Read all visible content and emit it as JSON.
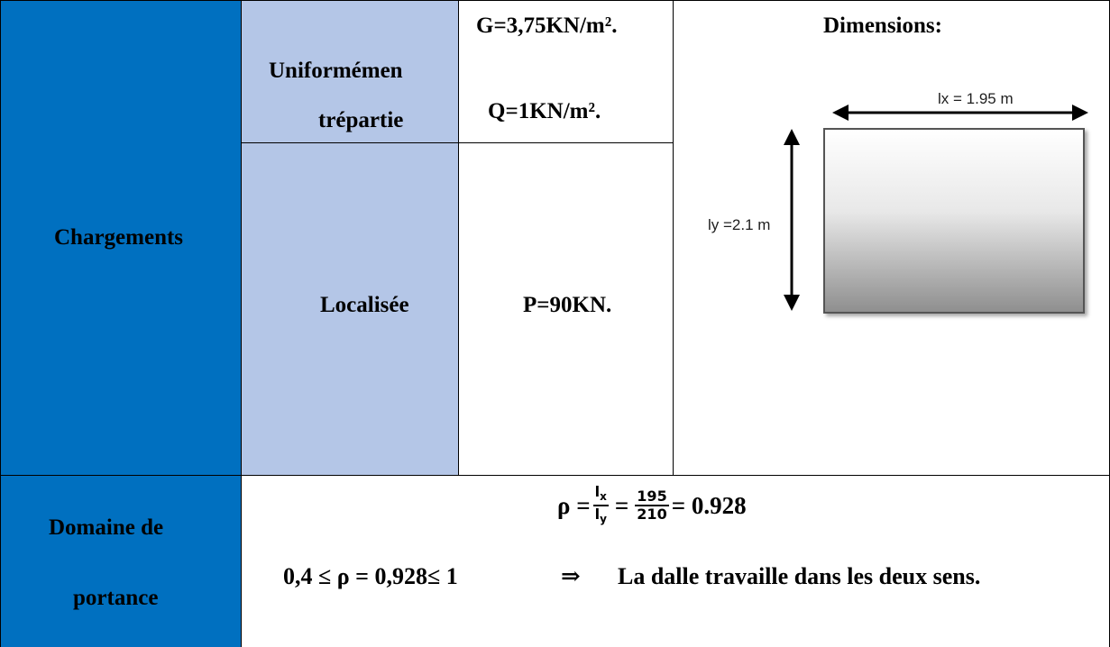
{
  "chargements": {
    "header": "Chargements",
    "uniform": {
      "label_line1": "Uniformémen",
      "label_line2": "trépartie",
      "g": "G=3,75KN/m².",
      "q": "Q=1KN/m²."
    },
    "localisee": {
      "label": "Localisée",
      "p": "P=90KN."
    },
    "dimensions": {
      "title": "Dimensions:",
      "lx_label": "lx = 1.95 m",
      "ly_label": "ly =2.1 m"
    }
  },
  "domaine": {
    "header_line1": "Domaine de",
    "header_line2": "portance",
    "formula": {
      "rho": "ρ =",
      "num1": "l",
      "num1_sub": "x",
      "den1": "l",
      "den1_sub": "y",
      "eq": "=",
      "num2": "195",
      "den2": "210",
      "result": "= 0.928"
    },
    "condition": "0,4 ≤ ρ  = 0,928≤ 1",
    "arrow": "⇒",
    "conclusion": "La dalle travaille dans les deux sens."
  }
}
